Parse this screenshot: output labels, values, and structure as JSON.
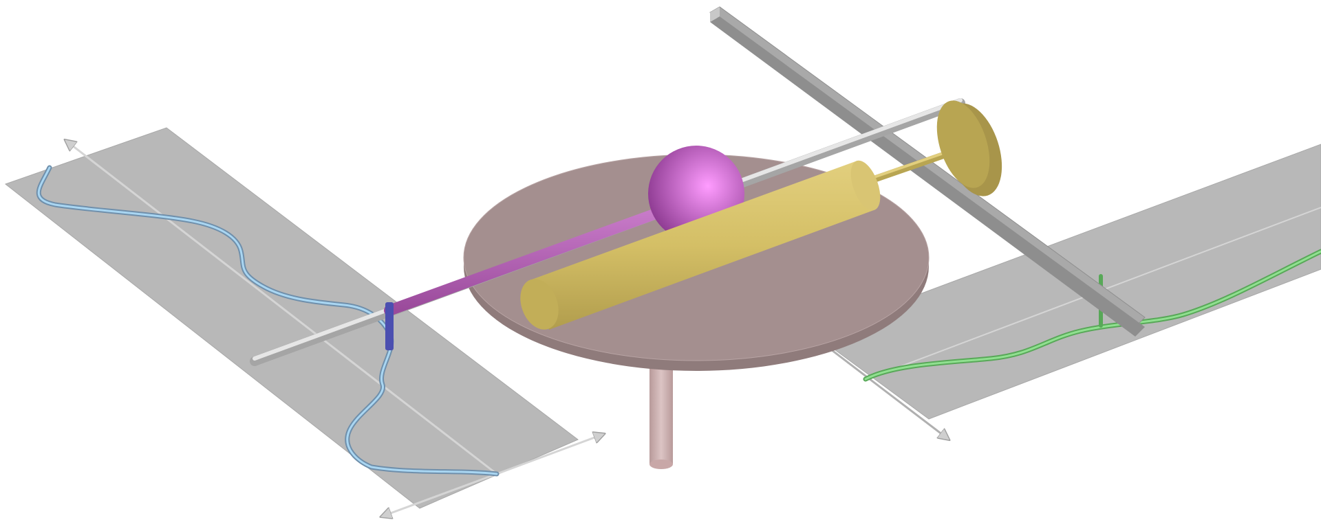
{
  "scene": {
    "description_text": "",
    "colors": {
      "background": "#ffffff",
      "plate": "#b8b8b8",
      "plate_edge": "#a8a8a8",
      "disk_top": "#a48f8f",
      "disk_side": "#8f7b7b",
      "post": "#c8a7a7",
      "sphere": "#d67ad8",
      "purple_rod": "#b45bb4",
      "silver_rod": "#cfcfcf",
      "gold": "#d4bf66",
      "gold_dark": "#b8a552",
      "bar": "#a9a9a9",
      "blue_curve": "#8ec4e6",
      "blue_curve_dark": "#6f8fab",
      "green_curve": "#7fd67f",
      "clamp": "#4b4fb0",
      "arrow": "#cfcfcf"
    }
  }
}
